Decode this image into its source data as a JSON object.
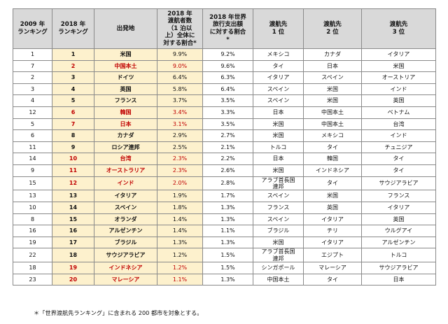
{
  "headers": {
    "rank2009": "2009 年\nランキング",
    "rank2018": "2018 年\nランキング",
    "origin": "出発地",
    "share_travelers": "2018 年\n渡航者数\n（1 泊以\n上）全体に\n対する割合*",
    "share_spend": "2018 年世界\n旅行支出額\nに対する割合\n*",
    "dest1": "渡航先\n1 位",
    "dest2": "渡航先\n2 位",
    "dest3": "渡航先\n3 位"
  },
  "rows": [
    {
      "r09": "1",
      "r18": "1",
      "origin": "米国",
      "share_trav": "9.9%",
      "share_spend": "9.2%",
      "d1": "メキシコ",
      "d2": "カナダ",
      "d3": "イタリア",
      "red": false
    },
    {
      "r09": "7",
      "r18": "2",
      "origin": "中国本土",
      "share_trav": "9.0%",
      "share_spend": "9.6%",
      "d1": "タイ",
      "d2": "日本",
      "d3": "米国",
      "red": true
    },
    {
      "r09": "2",
      "r18": "3",
      "origin": "ドイツ",
      "share_trav": "6.4%",
      "share_spend": "6.3%",
      "d1": "イタリア",
      "d2": "スペイン",
      "d3": "オーストリア",
      "red": false
    },
    {
      "r09": "3",
      "r18": "4",
      "origin": "英国",
      "share_trav": "5.8%",
      "share_spend": "6.4%",
      "d1": "スペイン",
      "d2": "米国",
      "d3": "インド",
      "red": false
    },
    {
      "r09": "4",
      "r18": "5",
      "origin": "フランス",
      "share_trav": "3.7%",
      "share_spend": "3.5%",
      "d1": "スペイン",
      "d2": "米国",
      "d3": "英国",
      "red": false
    },
    {
      "r09": "12",
      "r18": "6",
      "origin": "韓国",
      "share_trav": "3.4%",
      "share_spend": "3.3%",
      "d1": "日本",
      "d2": "中国本土",
      "d3": "ベトナム",
      "red": true
    },
    {
      "r09": "5",
      "r18": "7",
      "origin": "日本",
      "share_trav": "3.1%",
      "share_spend": "3.5%",
      "d1": "米国",
      "d2": "中国本土",
      "d3": "台湾",
      "red": true
    },
    {
      "r09": "6",
      "r18": "8",
      "origin": "カナダ",
      "share_trav": "2.9%",
      "share_spend": "2.7%",
      "d1": "米国",
      "d2": "メキシコ",
      "d3": "インド",
      "red": false
    },
    {
      "r09": "11",
      "r18": "9",
      "origin": "ロシア連邦",
      "share_trav": "2.5%",
      "share_spend": "2.1%",
      "d1": "トルコ",
      "d2": "タイ",
      "d3": "チュニジア",
      "red": false
    },
    {
      "r09": "14",
      "r18": "10",
      "origin": "台湾",
      "share_trav": "2.3%",
      "share_spend": "2.2%",
      "d1": "日本",
      "d2": "韓国",
      "d3": "タイ",
      "red": true
    },
    {
      "r09": "9",
      "r18": "11",
      "origin": "オーストラリア",
      "share_trav": "2.3%",
      "share_spend": "2.6%",
      "d1": "米国",
      "d2": "インドネシア",
      "d3": "タイ",
      "red": true
    },
    {
      "r09": "15",
      "r18": "12",
      "origin": "インド",
      "share_trav": "2.0%",
      "share_spend": "2.8%",
      "d1": "アラブ首長国\n連邦",
      "d2": "タイ",
      "d3": "サウジアラビア",
      "red": true
    },
    {
      "r09": "13",
      "r18": "13",
      "origin": "イタリア",
      "share_trav": "1.9%",
      "share_spend": "1.7%",
      "d1": "スペイン",
      "d2": "米国",
      "d3": "フランス",
      "red": false
    },
    {
      "r09": "10",
      "r18": "14",
      "origin": "スペイン",
      "share_trav": "1.8%",
      "share_spend": "1.3%",
      "d1": "フランス",
      "d2": "英国",
      "d3": "イタリア",
      "red": false
    },
    {
      "r09": "8",
      "r18": "15",
      "origin": "オランダ",
      "share_trav": "1.4%",
      "share_spend": "1.3%",
      "d1": "スペイン",
      "d2": "イタリア",
      "d3": "英国",
      "red": false
    },
    {
      "r09": "16",
      "r18": "16",
      "origin": "アルゼンチン",
      "share_trav": "1.4%",
      "share_spend": "1.1%",
      "d1": "ブラジル",
      "d2": "チリ",
      "d3": "ウルグアイ",
      "red": false
    },
    {
      "r09": "19",
      "r18": "17",
      "origin": "ブラジル",
      "share_trav": "1.3%",
      "share_spend": "1.3%",
      "d1": "米国",
      "d2": "イタリア",
      "d3": "アルゼンチン",
      "red": false
    },
    {
      "r09": "22",
      "r18": "18",
      "origin": "サウジアラビア",
      "share_trav": "1.2%",
      "share_spend": "1.5%",
      "d1": "アラブ首長国\n連邦",
      "d2": "エジプト",
      "d3": "トルコ",
      "red": false
    },
    {
      "r09": "18",
      "r18": "19",
      "origin": "インドネシア",
      "share_trav": "1.2%",
      "share_spend": "1.5%",
      "d1": "シンガポール",
      "d2": "マレーシア",
      "d3": "サウジアラビア",
      "red": true
    },
    {
      "r09": "23",
      "r18": "20",
      "origin": "マレーシア",
      "share_trav": "1.1%",
      "share_spend": "1.3%",
      "d1": "中国本土",
      "d2": "タイ",
      "d3": "日本",
      "red": true
    }
  ],
  "footnote": "＊「世界渡航先ランキング」に含まれる 200 都市を対象とする。"
}
